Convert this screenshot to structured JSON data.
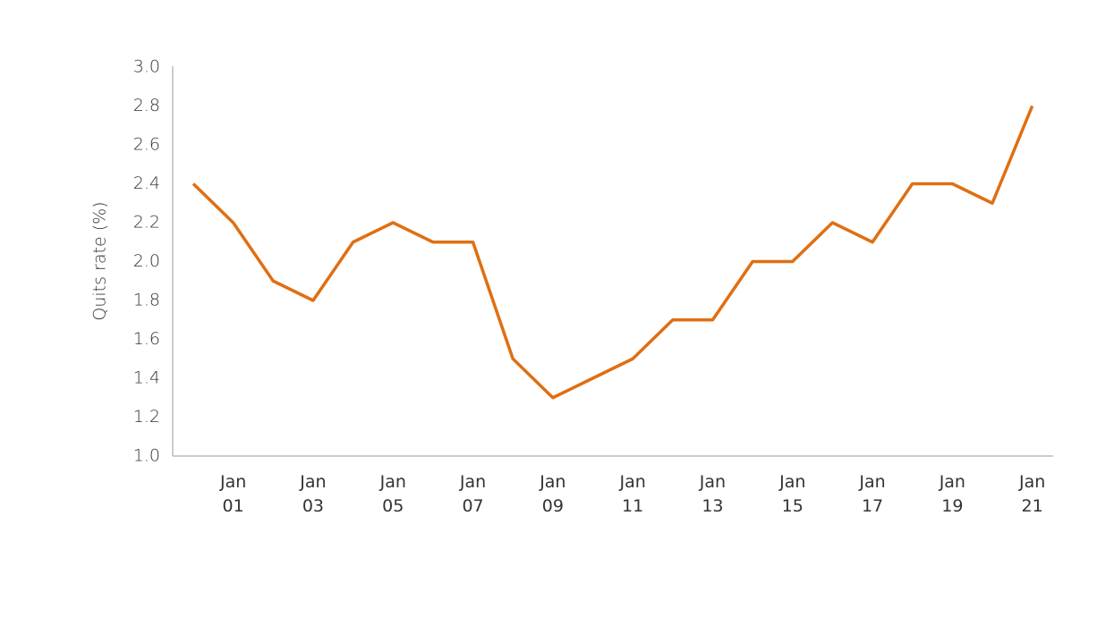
{
  "chart_data": {
    "type": "line",
    "y_label": "Quits rate (%)",
    "categories": [
      null,
      "Jan 01",
      null,
      "Jan 03",
      null,
      "Jan 05",
      null,
      "Jan 07",
      null,
      "Jan 09",
      null,
      "Jan 11",
      null,
      "Jan 13",
      null,
      "Jan 15",
      null,
      "Jan 17",
      null,
      "Jan 19",
      null,
      "Jan 21"
    ],
    "values": [
      2.4,
      2.2,
      1.9,
      1.8,
      2.1,
      2.2,
      2.1,
      2.1,
      1.5,
      1.3,
      1.4,
      1.5,
      1.7,
      1.7,
      2.0,
      2.0,
      2.2,
      2.1,
      2.4,
      2.4,
      2.3,
      2.8
    ],
    "color": "#df6f12",
    "ylim": [
      1.0,
      3.0
    ],
    "yticks": [
      {
        "value": 1.0,
        "label": "1.0"
      },
      1.2,
      1.4,
      1.6,
      1.8,
      {
        "value": 2.0,
        "label": "2.0"
      },
      2.2,
      2.4,
      2.6,
      2.8,
      {
        "value": 3.0,
        "label": "3.0"
      }
    ],
    "grid": false
  }
}
